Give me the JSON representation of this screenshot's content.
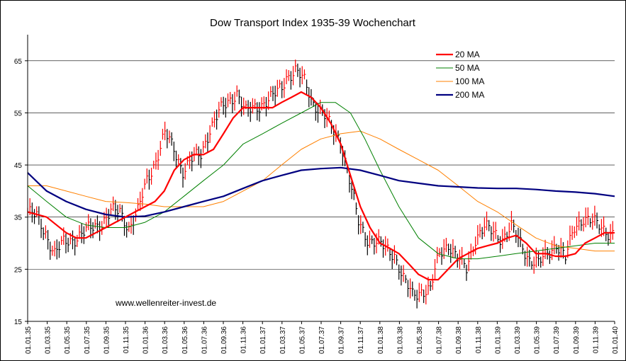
{
  "chart_data": {
    "type": "line",
    "title": "Dow Transport Index 1935-39 Wochenchart",
    "xlabel": "",
    "ylabel": "",
    "ylim": [
      15,
      70
    ],
    "y_ticks": [
      15,
      25,
      35,
      45,
      55,
      65
    ],
    "x_range": [
      "1935-01-01",
      "1940-01-01"
    ],
    "x_tick_labels": [
      "01.01.35",
      "01.03.35",
      "01.05.35",
      "01.07.35",
      "01.09.35",
      "01.11.35",
      "01.01.36",
      "01.03.36",
      "01.05.36",
      "01.07.36",
      "01.09.36",
      "01.11.36",
      "01.01.37",
      "01.03.37",
      "01.05.37",
      "01.07.37",
      "01.09.37",
      "01.11.37",
      "01.01.38",
      "01.03.38",
      "01.05.38",
      "01.07.38",
      "01.09.38",
      "01.11.38",
      "01.01.39",
      "01.03.39",
      "01.05.39",
      "01.07.39",
      "01.09.39",
      "01.11.39",
      "01.01.40"
    ],
    "grid": "horizontal",
    "legend_position": "top-right",
    "annotation": "www.wellenreiter-invest.de",
    "price_color": "#000000",
    "up_tick_color": "#ff0000",
    "price": {
      "x": [
        "1935-01-01",
        "1935-01-29",
        "1935-02-26",
        "1935-03-26",
        "1935-04-23",
        "1935-05-28",
        "1935-06-25",
        "1935-07-23",
        "1935-08-20",
        "1935-09-17",
        "1935-10-15",
        "1935-11-12",
        "1935-12-10",
        "1936-01-07",
        "1936-02-04",
        "1936-03-03",
        "1936-03-31",
        "1936-04-28",
        "1936-05-26",
        "1936-06-23",
        "1936-07-21",
        "1936-08-18",
        "1936-09-15",
        "1936-10-13",
        "1936-11-10",
        "1936-12-08",
        "1937-01-05",
        "1937-02-02",
        "1937-03-02",
        "1937-03-16",
        "1937-04-13",
        "1937-05-11",
        "1937-06-08",
        "1937-07-06",
        "1937-08-03",
        "1937-08-31",
        "1937-09-28",
        "1937-10-26",
        "1937-11-23",
        "1937-12-21",
        "1938-01-18",
        "1938-02-15",
        "1938-03-15",
        "1938-04-12",
        "1938-05-10",
        "1938-06-07",
        "1938-07-05",
        "1938-08-02",
        "1938-08-30",
        "1938-09-27",
        "1938-10-25",
        "1938-11-22",
        "1938-12-20",
        "1939-01-17",
        "1939-02-14",
        "1939-03-14",
        "1939-04-11",
        "1939-05-09",
        "1939-06-06",
        "1939-07-04",
        "1939-08-01",
        "1939-08-29",
        "1939-09-26",
        "1939-10-24",
        "1939-11-21",
        "1939-12-19",
        "1940-01-01"
      ],
      "values": [
        36,
        35,
        32,
        28,
        30,
        31,
        32,
        33,
        34,
        36,
        36,
        33,
        36,
        42,
        46,
        51,
        48,
        44,
        46,
        47,
        52,
        55,
        57,
        59,
        55,
        56,
        57,
        58,
        60,
        62,
        63,
        61,
        57,
        55,
        52,
        50,
        42,
        34,
        31,
        30,
        29,
        28,
        23,
        20,
        21,
        21,
        28,
        30,
        27,
        25,
        31,
        33,
        32,
        31,
        33,
        30,
        27,
        26,
        28,
        30,
        27,
        33,
        35,
        34,
        33,
        32,
        32
      ]
    },
    "series": [
      {
        "name": "20 MA",
        "color": "#ff0000",
        "width": 2.2,
        "x": [
          "1935-01-01",
          "1935-03-01",
          "1935-05-01",
          "1935-06-01",
          "1935-07-01",
          "1935-08-01",
          "1935-09-01",
          "1935-10-01",
          "1935-11-01",
          "1935-12-01",
          "1936-01-01",
          "1936-02-01",
          "1936-03-01",
          "1936-04-01",
          "1936-05-01",
          "1936-06-01",
          "1936-07-01",
          "1936-08-01",
          "1936-09-01",
          "1936-10-01",
          "1936-11-01",
          "1936-12-01",
          "1937-01-01",
          "1937-02-01",
          "1937-03-01",
          "1937-04-01",
          "1937-05-01",
          "1937-06-01",
          "1937-07-01",
          "1937-08-01",
          "1937-09-01",
          "1937-10-01",
          "1937-11-01",
          "1937-12-01",
          "1938-01-01",
          "1938-02-01",
          "1938-03-01",
          "1938-04-01",
          "1938-05-01",
          "1938-06-01",
          "1938-07-01",
          "1938-08-01",
          "1938-09-01",
          "1938-10-01",
          "1938-11-01",
          "1938-12-01",
          "1939-01-01",
          "1939-02-01",
          "1939-03-01",
          "1939-04-01",
          "1939-05-01",
          "1939-06-01",
          "1939-07-01",
          "1939-08-01",
          "1939-09-01",
          "1939-10-01",
          "1939-11-01",
          "1939-12-01",
          "1940-01-01"
        ],
        "values": [
          36,
          35,
          32,
          31,
          31,
          32,
          33,
          34,
          35,
          36,
          37,
          38,
          40,
          44,
          46,
          47,
          47,
          48,
          51,
          54,
          56,
          56,
          56,
          56,
          57,
          58,
          59,
          58,
          56,
          53,
          49,
          43,
          37,
          33,
          30,
          29,
          28,
          26,
          24,
          23,
          23,
          25,
          27,
          28,
          29,
          29.5,
          30,
          31,
          31.5,
          30,
          28,
          28,
          27.5,
          27.5,
          28,
          30,
          31,
          32,
          32
        ]
      },
      {
        "name": "50 MA",
        "color": "#008000",
        "width": 1,
        "x": [
          "1935-01-01",
          "1935-03-01",
          "1935-05-01",
          "1935-07-01",
          "1935-09-01",
          "1935-11-01",
          "1936-01-01",
          "1936-03-01",
          "1936-05-01",
          "1936-07-01",
          "1936-09-01",
          "1936-11-01",
          "1937-01-01",
          "1937-03-01",
          "1937-05-01",
          "1937-07-01",
          "1937-08-15",
          "1937-10-01",
          "1937-11-15",
          "1938-01-01",
          "1938-03-01",
          "1938-05-01",
          "1938-07-01",
          "1938-09-01",
          "1938-11-01",
          "1939-01-01",
          "1939-03-01",
          "1939-05-01",
          "1939-07-01",
          "1939-09-01",
          "1939-11-01",
          "1940-01-01"
        ],
        "values": [
          41,
          38,
          35,
          33.5,
          33,
          33,
          34,
          36,
          39,
          42,
          45,
          49,
          51,
          53,
          55,
          57,
          57,
          55,
          50,
          44,
          37,
          31,
          28,
          27,
          27,
          27.5,
          28,
          28.5,
          29,
          29.5,
          30,
          30
        ]
      },
      {
        "name": "100 MA",
        "color": "#ff8000",
        "width": 1,
        "x": [
          "1935-01-01",
          "1935-03-01",
          "1935-05-01",
          "1935-07-01",
          "1935-09-01",
          "1935-11-01",
          "1936-01-01",
          "1936-03-01",
          "1936-05-01",
          "1936-07-01",
          "1936-09-01",
          "1936-11-01",
          "1937-01-01",
          "1937-03-01",
          "1937-05-01",
          "1937-07-01",
          "1937-09-01",
          "1937-11-01",
          "1938-01-01",
          "1938-03-01",
          "1938-05-01",
          "1938-07-01",
          "1938-09-01",
          "1938-11-01",
          "1939-01-01",
          "1939-03-01",
          "1939-05-01",
          "1939-07-01",
          "1939-09-01",
          "1939-11-01",
          "1940-01-01"
        ],
        "values": [
          41,
          41,
          40,
          39,
          38,
          37.8,
          37.5,
          37,
          37,
          37,
          38,
          40,
          42,
          45,
          48,
          50,
          51,
          51.5,
          50,
          48,
          46,
          44,
          41,
          38,
          36,
          33.5,
          31,
          29.5,
          29,
          28.5,
          28.5
        ]
      },
      {
        "name": "200 MA",
        "color": "#000080",
        "width": 2.2,
        "x": [
          "1935-01-01",
          "1935-03-01",
          "1935-05-01",
          "1935-07-01",
          "1935-09-01",
          "1935-11-01",
          "1936-01-01",
          "1936-03-01",
          "1936-05-01",
          "1936-07-01",
          "1936-09-01",
          "1936-11-01",
          "1937-01-01",
          "1937-03-01",
          "1937-05-01",
          "1937-07-01",
          "1937-09-01",
          "1937-11-01",
          "1938-01-01",
          "1938-03-01",
          "1938-05-01",
          "1938-07-01",
          "1938-09-01",
          "1938-11-01",
          "1939-01-01",
          "1939-03-01",
          "1939-05-01",
          "1939-07-01",
          "1939-09-01",
          "1939-11-01",
          "1940-01-01"
        ],
        "values": [
          43.5,
          40,
          38,
          36.5,
          35.5,
          35,
          35.2,
          36,
          37,
          38,
          39,
          40.5,
          42,
          43,
          44,
          44.3,
          44.5,
          44,
          43,
          42,
          41.5,
          41,
          40.8,
          40.6,
          40.5,
          40.5,
          40.3,
          40,
          39.8,
          39.5,
          39
        ]
      }
    ]
  }
}
